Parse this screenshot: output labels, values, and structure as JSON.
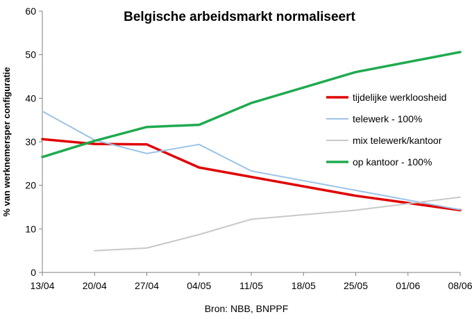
{
  "chart_data": {
    "type": "line",
    "title": "Belgische arbeidsmarkt  normaliseert",
    "ylabel": "% van werknemersper configuratie",
    "xlabel": "Bron: NBB, BNPPF",
    "categories": [
      "13/04",
      "20/04",
      "27/04",
      "04/05",
      "11/05",
      "18/05",
      "25/05",
      "01/06",
      "08/06"
    ],
    "ylim": [
      0,
      60
    ],
    "yticks": [
      0,
      10,
      20,
      30,
      40,
      50,
      60
    ],
    "legend_position": "right",
    "grid": false,
    "series": [
      {
        "name": "tijdelijke werkloosheid",
        "color": "#e00000",
        "width": 3.5,
        "values": [
          30.6,
          29.5,
          29.4,
          24.1,
          null,
          null,
          17.6,
          null,
          14.3
        ],
        "points": [
          [
            0,
            30.6
          ],
          [
            1,
            29.5
          ],
          [
            2,
            29.4
          ],
          [
            3,
            24.1
          ],
          [
            6,
            17.6
          ],
          [
            8,
            14.3
          ]
        ]
      },
      {
        "name": "telewerk - 100%",
        "color": "#9dc3e6",
        "width": 2,
        "values": [
          37.0,
          30.4,
          27.3,
          29.4,
          23.3,
          null,
          null,
          null,
          14.4
        ],
        "points": [
          [
            0,
            37.0
          ],
          [
            1,
            30.4
          ],
          [
            2,
            27.3
          ],
          [
            3,
            29.4
          ],
          [
            4,
            23.3
          ],
          [
            8,
            14.4
          ]
        ]
      },
      {
        "name": "mix telewerk/kantoor",
        "color": "#c8c8c8",
        "width": 2,
        "values": [
          null,
          5.0,
          5.6,
          8.7,
          12.2,
          null,
          14.3,
          null,
          17.3
        ],
        "points": [
          [
            1,
            5.0
          ],
          [
            2,
            5.6
          ],
          [
            3,
            8.7
          ],
          [
            4,
            12.2
          ],
          [
            6,
            14.3
          ],
          [
            8,
            17.3
          ]
        ]
      },
      {
        "name": "op kantoor - 100%",
        "color": "#1faa4f",
        "width": 3.5,
        "values": [
          26.5,
          30.2,
          33.4,
          33.9,
          38.9,
          null,
          46.0,
          null,
          50.6
        ],
        "points": [
          [
            0,
            26.5
          ],
          [
            1,
            30.2
          ],
          [
            2,
            33.4
          ],
          [
            3,
            33.9
          ],
          [
            4,
            38.9
          ],
          [
            6,
            46.0
          ],
          [
            8,
            50.6
          ]
        ]
      }
    ]
  }
}
